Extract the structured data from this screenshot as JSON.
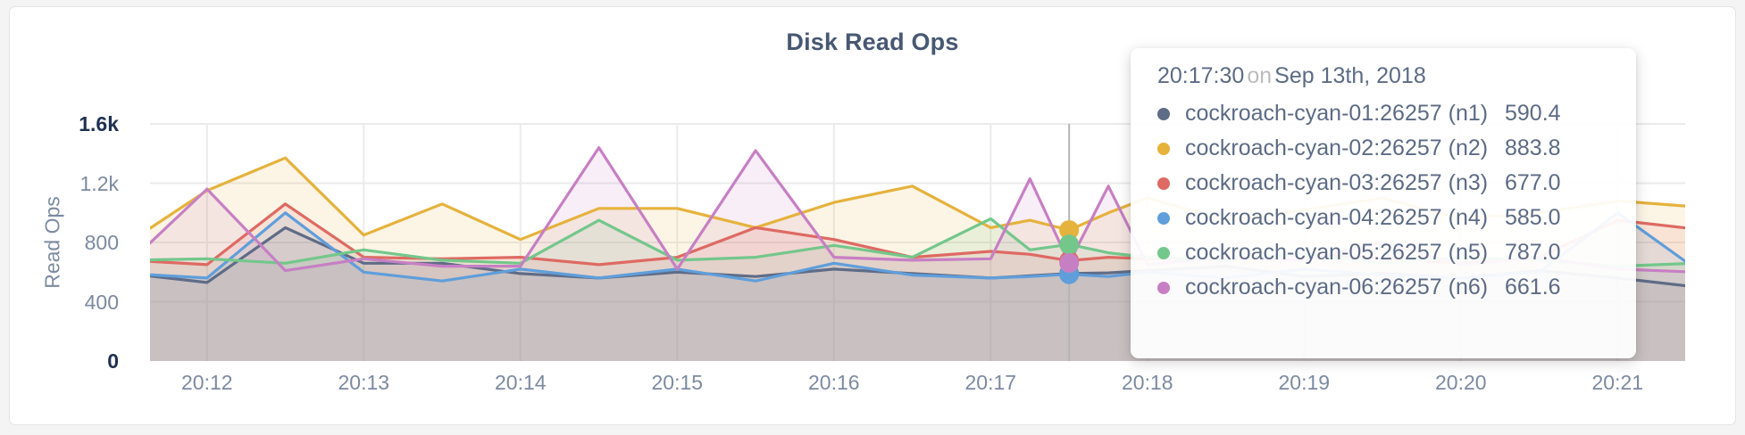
{
  "title": "Disk Read Ops",
  "colors": {
    "page_background": "#f4f4f4",
    "card_background": "#ffffff",
    "card_border": "#e4e4e4",
    "title_text": "#475872",
    "axis_text": "#7c8aa1",
    "axis_text_emphasis": "#1e3150",
    "gridline": "#ebebeb",
    "crosshair": "#b5b5b5"
  },
  "tooltip": {
    "time": "20:17:30",
    "conjunction": "on",
    "date": "Sep 13th, 2018"
  },
  "chart_data": {
    "type": "area",
    "title": "Disk Read Ops",
    "xlabel": "",
    "ylabel": "Read Ops",
    "ylim": [
      0,
      1600
    ],
    "grid": true,
    "y_ticks": [
      {
        "label": "0",
        "value": 0,
        "emphasis": true
      },
      {
        "label": "400",
        "value": 400,
        "emphasis": false
      },
      {
        "label": "800",
        "value": 800,
        "emphasis": false
      },
      {
        "label": "1.2k",
        "value": 1200,
        "emphasis": false
      },
      {
        "label": "1.6k",
        "value": 1600,
        "emphasis": true
      }
    ],
    "x_tick_labels": [
      "20:12",
      "20:13",
      "20:14",
      "20:15",
      "20:16",
      "20:17",
      "20:18",
      "20:19",
      "20:20",
      "20:21"
    ],
    "x_start_time": "20:11:30",
    "x_offsets_seconds": [
      0,
      30,
      60,
      90,
      120,
      150,
      180,
      210,
      240,
      270,
      300,
      330,
      345,
      360,
      375,
      390,
      420,
      450,
      480,
      510,
      540,
      570,
      600
    ],
    "hover": {
      "index": 13,
      "time": "20:17:30",
      "date": "Sep 13th, 2018"
    },
    "series": [
      {
        "name": "cockroach-cyan-01:26257 (n1)",
        "color": "#5f6c87",
        "hover_label": "590.4",
        "values": [
          590,
          530,
          900,
          660,
          660,
          590,
          560,
          600,
          570,
          620,
          590,
          560,
          575,
          590.4,
          595,
          610,
          640,
          570,
          590,
          560,
          610,
          560,
          500
        ]
      },
      {
        "name": "cockroach-cyan-02:26257 (n2)",
        "color": "#e5b23c",
        "hover_label": "883.8",
        "values": [
          800,
          1150,
          1370,
          850,
          1060,
          820,
          1030,
          1030,
          900,
          1070,
          1180,
          900,
          950,
          883.8,
          1000,
          1100,
          950,
          1020,
          1100,
          960,
          1000,
          1080,
          1040
        ]
      },
      {
        "name": "cockroach-cyan-03:26257 (n3)",
        "color": "#de6a63",
        "hover_label": "677.0",
        "values": [
          680,
          650,
          1060,
          700,
          690,
          700,
          650,
          700,
          900,
          820,
          700,
          740,
          720,
          677,
          700,
          690,
          680,
          720,
          690,
          660,
          700,
          950,
          890
        ]
      },
      {
        "name": "cockroach-cyan-04:26257 (n4)",
        "color": "#5f9edb",
        "hover_label": "585.0",
        "values": [
          590,
          560,
          1000,
          600,
          540,
          620,
          560,
          620,
          540,
          660,
          580,
          560,
          570,
          585,
          570,
          600,
          560,
          620,
          580,
          560,
          600,
          1000,
          620
        ]
      },
      {
        "name": "cockroach-cyan-05:26257 (n5)",
        "color": "#73c78b",
        "hover_label": "787.0",
        "values": [
          680,
          690,
          660,
          750,
          680,
          660,
          950,
          680,
          700,
          780,
          700,
          960,
          750,
          787,
          730,
          700,
          680,
          720,
          660,
          700,
          680,
          640,
          660
        ]
      },
      {
        "name": "cockroach-cyan-06:26257 (n6)",
        "color": "#c77fc4",
        "hover_label": "661.6",
        "values": [
          660,
          1160,
          610,
          690,
          640,
          640,
          1440,
          620,
          1420,
          700,
          680,
          690,
          1230,
          661.6,
          1180,
          650,
          700,
          680,
          800,
          650,
          700,
          620,
          600
        ]
      }
    ]
  }
}
